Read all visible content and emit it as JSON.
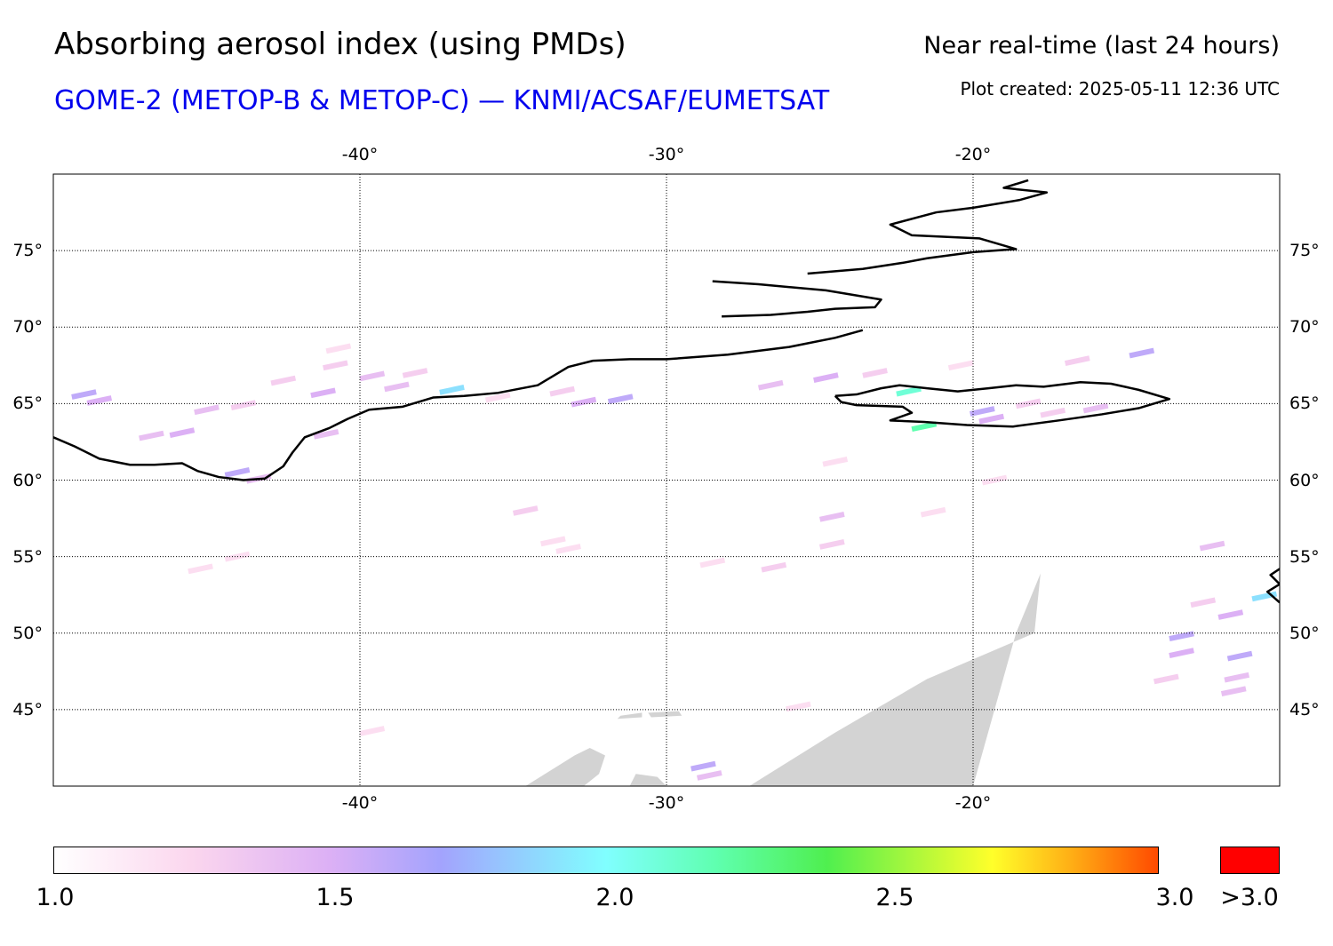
{
  "header": {
    "title": "Absorbing aerosol index (using PMDs)",
    "subtitle": "GOME-2 (METOP-B & METOP-C) — KNMI/ACSAF/EUMETSAT",
    "period": "Near real-time (last 24 hours)",
    "created": "Plot created: 2025-05-11 12:36 UTC"
  },
  "map": {
    "lon_range": [
      -50,
      -10
    ],
    "lat_range": [
      40,
      80
    ],
    "lon_ticks": [
      {
        "value": -40,
        "label": "-40°"
      },
      {
        "value": -30,
        "label": "-30°"
      },
      {
        "value": -20,
        "label": "-20°"
      }
    ],
    "lat_ticks": [
      {
        "value": 75,
        "label": "75°"
      },
      {
        "value": 70,
        "label": "70°"
      },
      {
        "value": 65,
        "label": "65°"
      },
      {
        "value": 60,
        "label": "60°"
      },
      {
        "value": 55,
        "label": "55°"
      },
      {
        "value": 50,
        "label": "50°"
      },
      {
        "value": 45,
        "label": "45°"
      }
    ],
    "grid": true,
    "no_data_color": "#d3d3d3",
    "coastline_color": "#000000",
    "coastlines": [
      {
        "name": "greenland",
        "points": [
          [
            -50,
            62.8
          ],
          [
            -49.3,
            62.2
          ],
          [
            -48.5,
            61.4
          ],
          [
            -47.5,
            61.0
          ],
          [
            -46.7,
            61.0
          ],
          [
            -45.8,
            61.1
          ],
          [
            -45.3,
            60.6
          ],
          [
            -44.6,
            60.2
          ],
          [
            -43.8,
            60.0
          ],
          [
            -43.1,
            60.1
          ],
          [
            -42.5,
            60.9
          ],
          [
            -42.2,
            61.8
          ],
          [
            -41.8,
            62.8
          ],
          [
            -41.0,
            63.4
          ],
          [
            -40.4,
            64.0
          ],
          [
            -39.7,
            64.6
          ],
          [
            -38.6,
            64.8
          ],
          [
            -37.6,
            65.4
          ],
          [
            -36.6,
            65.5
          ],
          [
            -35.5,
            65.7
          ],
          [
            -34.2,
            66.2
          ],
          [
            -33.2,
            67.4
          ],
          [
            -32.4,
            67.8
          ],
          [
            -31.2,
            67.9
          ],
          [
            -30.0,
            67.9
          ],
          [
            -28.0,
            68.2
          ],
          [
            -26.0,
            68.7
          ],
          [
            -24.5,
            69.3
          ],
          [
            -23.6,
            69.8
          ]
        ]
      },
      {
        "name": "greenland-fjords",
        "points": [
          [
            -28.2,
            70.7
          ],
          [
            -26.6,
            70.8
          ],
          [
            -25.4,
            71.0
          ],
          [
            -24.5,
            71.2
          ],
          [
            -23.2,
            71.3
          ],
          [
            -23.0,
            71.8
          ],
          [
            -24.8,
            72.4
          ],
          [
            -27.0,
            72.8
          ],
          [
            -28.5,
            73.0
          ]
        ]
      },
      {
        "name": "greenland-north",
        "points": [
          [
            -25.4,
            73.5
          ],
          [
            -23.6,
            73.8
          ],
          [
            -22.3,
            74.2
          ],
          [
            -21.5,
            74.5
          ],
          [
            -20.0,
            74.9
          ],
          [
            -18.6,
            75.1
          ],
          [
            -19.8,
            75.8
          ],
          [
            -22.0,
            76.0
          ],
          [
            -22.7,
            76.7
          ],
          [
            -21.2,
            77.5
          ],
          [
            -20.0,
            77.8
          ],
          [
            -18.5,
            78.3
          ],
          [
            -17.6,
            78.8
          ],
          [
            -19.0,
            79.1
          ],
          [
            -18.2,
            79.6
          ]
        ]
      },
      {
        "name": "iceland",
        "points": [
          [
            -24.5,
            65.5
          ],
          [
            -23.8,
            65.6
          ],
          [
            -23.0,
            66.0
          ],
          [
            -22.4,
            66.2
          ],
          [
            -21.5,
            66.0
          ],
          [
            -20.5,
            65.8
          ],
          [
            -19.5,
            66.0
          ],
          [
            -18.6,
            66.2
          ],
          [
            -17.7,
            66.1
          ],
          [
            -16.5,
            66.4
          ],
          [
            -15.5,
            66.3
          ],
          [
            -14.6,
            65.9
          ],
          [
            -13.6,
            65.3
          ],
          [
            -14.6,
            64.7
          ],
          [
            -15.8,
            64.3
          ],
          [
            -17.2,
            63.9
          ],
          [
            -18.7,
            63.5
          ],
          [
            -20.2,
            63.6
          ],
          [
            -21.6,
            63.8
          ],
          [
            -22.7,
            63.9
          ],
          [
            -22.0,
            64.4
          ],
          [
            -22.3,
            64.8
          ],
          [
            -23.8,
            64.9
          ],
          [
            -24.3,
            65.1
          ],
          [
            -24.5,
            65.5
          ]
        ]
      },
      {
        "name": "ireland-edge",
        "points": [
          [
            -10.0,
            54.2
          ],
          [
            -10.3,
            53.8
          ],
          [
            -10.0,
            53.2
          ],
          [
            -10.4,
            52.7
          ],
          [
            -10.0,
            52.0
          ]
        ]
      }
    ],
    "nodata_regions": [
      {
        "name": "swath-gap-large",
        "points": [
          [
            -27.3,
            40
          ],
          [
            -24.5,
            43.5
          ],
          [
            -21.5,
            47.0
          ],
          [
            -18.0,
            50.0
          ],
          [
            -17.8,
            53.9
          ],
          [
            -18.6,
            50.0
          ],
          [
            -20.0,
            40
          ]
        ]
      },
      {
        "name": "swath-gap-small-1",
        "points": [
          [
            -34.6,
            40
          ],
          [
            -33.0,
            42.0
          ],
          [
            -32.5,
            42.5
          ],
          [
            -32.0,
            42.0
          ],
          [
            -32.2,
            40.8
          ],
          [
            -32.7,
            40
          ]
        ]
      },
      {
        "name": "swath-gap-small-2",
        "points": [
          [
            -31.2,
            40
          ],
          [
            -31.0,
            40.8
          ],
          [
            -30.3,
            40.6
          ],
          [
            -30.0,
            40
          ]
        ]
      },
      {
        "name": "swath-gap-small-3",
        "points": [
          [
            -31.5,
            44.6
          ],
          [
            -30.8,
            44.8
          ],
          [
            -30.8,
            44.5
          ],
          [
            -31.6,
            44.4
          ]
        ]
      },
      {
        "name": "swath-gap-small-4",
        "points": [
          [
            -30.6,
            44.8
          ],
          [
            -29.6,
            44.9
          ],
          [
            -29.5,
            44.6
          ],
          [
            -30.5,
            44.5
          ]
        ]
      }
    ],
    "aerosol_pixels": [
      {
        "lon": -49.0,
        "lat": 65.6,
        "aai": 1.6
      },
      {
        "lon": -48.5,
        "lat": 65.2,
        "aai": 1.5
      },
      {
        "lon": -45.8,
        "lat": 63.1,
        "aai": 1.5
      },
      {
        "lon": -46.8,
        "lat": 62.9,
        "aai": 1.4
      },
      {
        "lon": -45.0,
        "lat": 64.6,
        "aai": 1.4
      },
      {
        "lon": -43.8,
        "lat": 64.9,
        "aai": 1.3
      },
      {
        "lon": -42.5,
        "lat": 66.5,
        "aai": 1.3
      },
      {
        "lon": -41.2,
        "lat": 65.7,
        "aai": 1.5
      },
      {
        "lon": -40.8,
        "lat": 67.5,
        "aai": 1.3
      },
      {
        "lon": -39.6,
        "lat": 66.8,
        "aai": 1.4
      },
      {
        "lon": -38.2,
        "lat": 67.0,
        "aai": 1.3
      },
      {
        "lon": -38.8,
        "lat": 66.1,
        "aai": 1.4
      },
      {
        "lon": -41.1,
        "lat": 63.0,
        "aai": 1.4
      },
      {
        "lon": -44.0,
        "lat": 60.5,
        "aai": 1.6
      },
      {
        "lon": -43.3,
        "lat": 60.1,
        "aai": 1.4
      },
      {
        "lon": -40.7,
        "lat": 68.6,
        "aai": 1.2
      },
      {
        "lon": -37.0,
        "lat": 65.9,
        "aai": 1.9
      },
      {
        "lon": -35.5,
        "lat": 65.4,
        "aai": 1.2
      },
      {
        "lon": -32.7,
        "lat": 65.1,
        "aai": 1.5
      },
      {
        "lon": -33.4,
        "lat": 65.8,
        "aai": 1.3
      },
      {
        "lon": -26.6,
        "lat": 66.2,
        "aai": 1.4
      },
      {
        "lon": -24.8,
        "lat": 66.7,
        "aai": 1.5
      },
      {
        "lon": -23.2,
        "lat": 67.0,
        "aai": 1.3
      },
      {
        "lon": -20.4,
        "lat": 67.5,
        "aai": 1.2
      },
      {
        "lon": -16.6,
        "lat": 67.8,
        "aai": 1.3
      },
      {
        "lon": -14.5,
        "lat": 68.3,
        "aai": 1.6
      },
      {
        "lon": -22.1,
        "lat": 65.8,
        "aai": 2.1
      },
      {
        "lon": -21.6,
        "lat": 63.5,
        "aai": 2.2
      },
      {
        "lon": -19.7,
        "lat": 64.5,
        "aai": 1.6
      },
      {
        "lon": -19.4,
        "lat": 64.0,
        "aai": 1.5
      },
      {
        "lon": -17.4,
        "lat": 64.4,
        "aai": 1.3
      },
      {
        "lon": -16.0,
        "lat": 64.7,
        "aai": 1.4
      },
      {
        "lon": -18.2,
        "lat": 65.0,
        "aai": 1.3
      },
      {
        "lon": -24.5,
        "lat": 61.2,
        "aai": 1.2
      },
      {
        "lon": -19.3,
        "lat": 60.0,
        "aai": 1.2
      },
      {
        "lon": -24.6,
        "lat": 57.6,
        "aai": 1.4
      },
      {
        "lon": -24.6,
        "lat": 55.8,
        "aai": 1.3
      },
      {
        "lon": -21.3,
        "lat": 57.9,
        "aai": 1.2
      },
      {
        "lon": -33.7,
        "lat": 56.0,
        "aai": 1.2
      },
      {
        "lon": -33.2,
        "lat": 55.5,
        "aai": 1.2
      },
      {
        "lon": -28.5,
        "lat": 54.6,
        "aai": 1.2
      },
      {
        "lon": -26.5,
        "lat": 54.3,
        "aai": 1.3
      },
      {
        "lon": -44.0,
        "lat": 55.0,
        "aai": 1.2
      },
      {
        "lon": -45.2,
        "lat": 54.2,
        "aai": 1.2
      },
      {
        "lon": -11.6,
        "lat": 51.2,
        "aai": 1.5
      },
      {
        "lon": -12.5,
        "lat": 52.0,
        "aai": 1.3
      },
      {
        "lon": -12.2,
        "lat": 55.7,
        "aai": 1.4
      },
      {
        "lon": -10.5,
        "lat": 52.4,
        "aai": 1.9
      },
      {
        "lon": -13.2,
        "lat": 49.8,
        "aai": 1.6
      },
      {
        "lon": -13.2,
        "lat": 48.7,
        "aai": 1.5
      },
      {
        "lon": -11.3,
        "lat": 48.5,
        "aai": 1.6
      },
      {
        "lon": -11.4,
        "lat": 47.1,
        "aai": 1.4
      },
      {
        "lon": -11.5,
        "lat": 46.2,
        "aai": 1.4
      },
      {
        "lon": -13.7,
        "lat": 47.0,
        "aai": 1.3
      },
      {
        "lon": -28.8,
        "lat": 41.3,
        "aai": 1.6
      },
      {
        "lon": -28.6,
        "lat": 40.7,
        "aai": 1.4
      },
      {
        "lon": -25.7,
        "lat": 45.2,
        "aai": 1.2
      },
      {
        "lon": -34.6,
        "lat": 58.0,
        "aai": 1.3
      },
      {
        "lon": -39.6,
        "lat": 43.6,
        "aai": 1.2
      },
      {
        "lon": -31.5,
        "lat": 65.3,
        "aai": 1.6
      }
    ]
  },
  "colorbar": {
    "min": 1.0,
    "max": 3.0,
    "stops": [
      {
        "value": 1.0,
        "color": "#ffffff"
      },
      {
        "value": 1.25,
        "color": "#fbd6ee"
      },
      {
        "value": 1.5,
        "color": "#dcb0f5"
      },
      {
        "value": 1.7,
        "color": "#a3a3fd"
      },
      {
        "value": 2.0,
        "color": "#80ffff"
      },
      {
        "value": 2.2,
        "color": "#5fffaf"
      },
      {
        "value": 2.4,
        "color": "#4fef4f"
      },
      {
        "value": 2.7,
        "color": "#ffff2a"
      },
      {
        "value": 2.85,
        "color": "#ffaa14"
      },
      {
        "value": 3.0,
        "color": "#ff4a00"
      }
    ],
    "over_color": "#ff0000",
    "labels": [
      {
        "value": 1.0,
        "text": "1.0"
      },
      {
        "value": 1.5,
        "text": "1.5"
      },
      {
        "value": 2.0,
        "text": "2.0"
      },
      {
        "value": 2.5,
        "text": "2.5"
      },
      {
        "value": 3.0,
        "text": "3.0"
      }
    ],
    "over_label": ">3.0"
  }
}
